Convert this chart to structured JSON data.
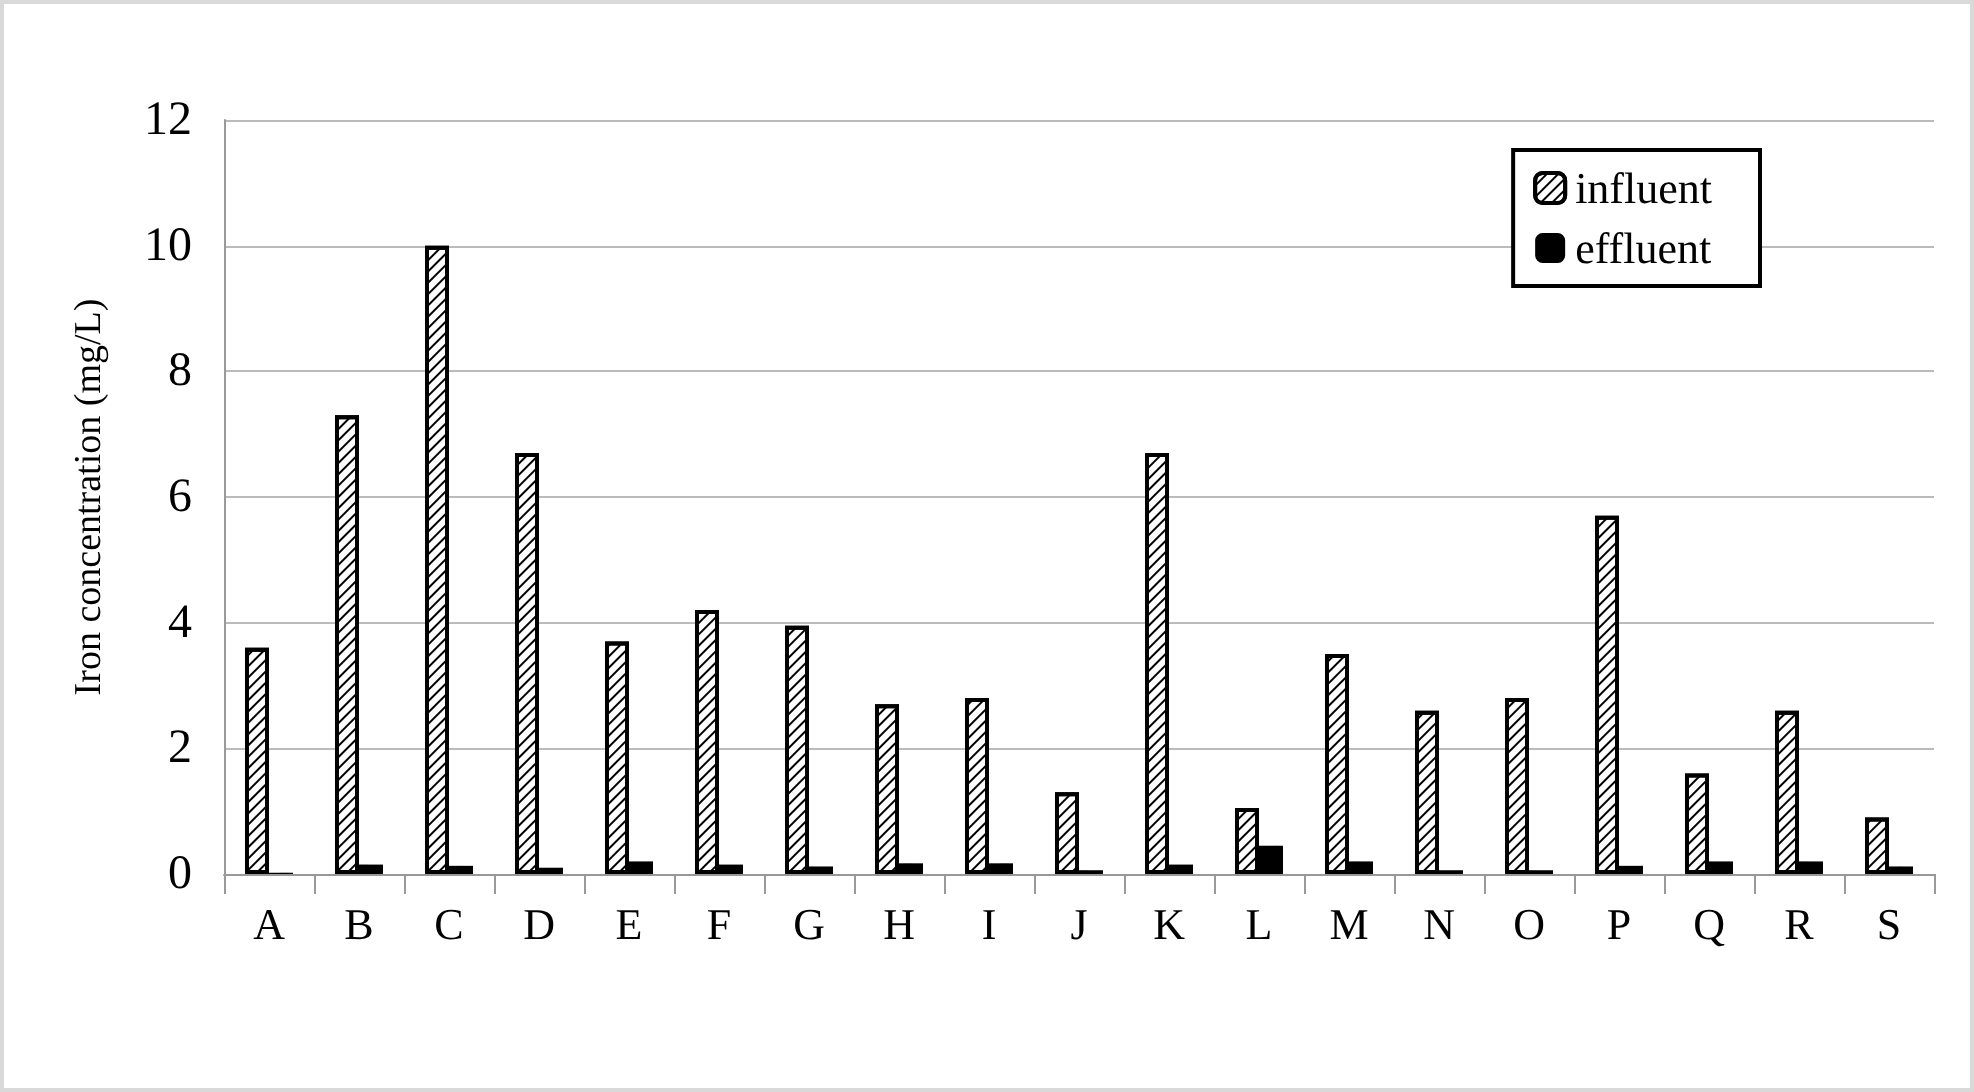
{
  "chart_data": {
    "type": "bar",
    "ylabel": "Iron concentration (mg/L)",
    "categories": [
      "A",
      "B",
      "C",
      "D",
      "E",
      "F",
      "G",
      "H",
      "I",
      "J",
      "K",
      "L",
      "M",
      "N",
      "O",
      "P",
      "Q",
      "R",
      "S"
    ],
    "series": [
      {
        "name": "influent",
        "color": "#ffffff",
        "values": [
          3.6,
          7.3,
          10.0,
          6.7,
          3.7,
          4.2,
          3.95,
          2.7,
          2.8,
          1.3,
          6.7,
          1.05,
          3.5,
          2.6,
          2.8,
          5.7,
          1.6,
          2.6,
          0.9
        ]
      },
      {
        "name": "effluent",
        "color": "#000000",
        "values": [
          0.02,
          0.15,
          0.13,
          0.1,
          0.2,
          0.15,
          0.12,
          0.17,
          0.17,
          0.06,
          0.15,
          0.45,
          0.2,
          0.06,
          0.06,
          0.13,
          0.2,
          0.2,
          0.12
        ]
      }
    ],
    "ylim": [
      0,
      12
    ],
    "yticks": [
      0,
      2,
      4,
      6,
      8,
      10,
      12
    ],
    "grid": "y",
    "legend": "top right"
  }
}
